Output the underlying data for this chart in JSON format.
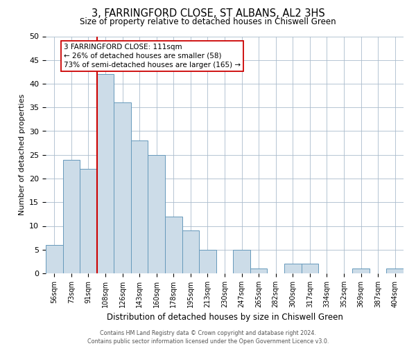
{
  "title": "3, FARRINGFORD CLOSE, ST ALBANS, AL2 3HS",
  "subtitle": "Size of property relative to detached houses in Chiswell Green",
  "xlabel": "Distribution of detached houses by size in Chiswell Green",
  "ylabel": "Number of detached properties",
  "bin_labels": [
    "56sqm",
    "73sqm",
    "91sqm",
    "108sqm",
    "126sqm",
    "143sqm",
    "160sqm",
    "178sqm",
    "195sqm",
    "213sqm",
    "230sqm",
    "247sqm",
    "265sqm",
    "282sqm",
    "300sqm",
    "317sqm",
    "334sqm",
    "352sqm",
    "369sqm",
    "387sqm",
    "404sqm"
  ],
  "bar_heights": [
    6,
    24,
    22,
    42,
    36,
    28,
    25,
    12,
    9,
    5,
    0,
    5,
    1,
    0,
    2,
    2,
    0,
    0,
    1,
    0,
    1
  ],
  "bar_color": "#ccdce8",
  "bar_edge_color": "#6699bb",
  "reference_line_index": 3,
  "reference_line_color": "#cc0000",
  "ylim": [
    0,
    50
  ],
  "yticks": [
    0,
    5,
    10,
    15,
    20,
    25,
    30,
    35,
    40,
    45,
    50
  ],
  "annotation_title": "3 FARRINGFORD CLOSE: 111sqm",
  "annotation_line1": "← 26% of detached houses are smaller (58)",
  "annotation_line2": "73% of semi-detached houses are larger (165) →",
  "footer_line1": "Contains HM Land Registry data © Crown copyright and database right 2024.",
  "footer_line2": "Contains public sector information licensed under the Open Government Licence v3.0.",
  "background_color": "#ffffff",
  "grid_color": "#aabbcc"
}
